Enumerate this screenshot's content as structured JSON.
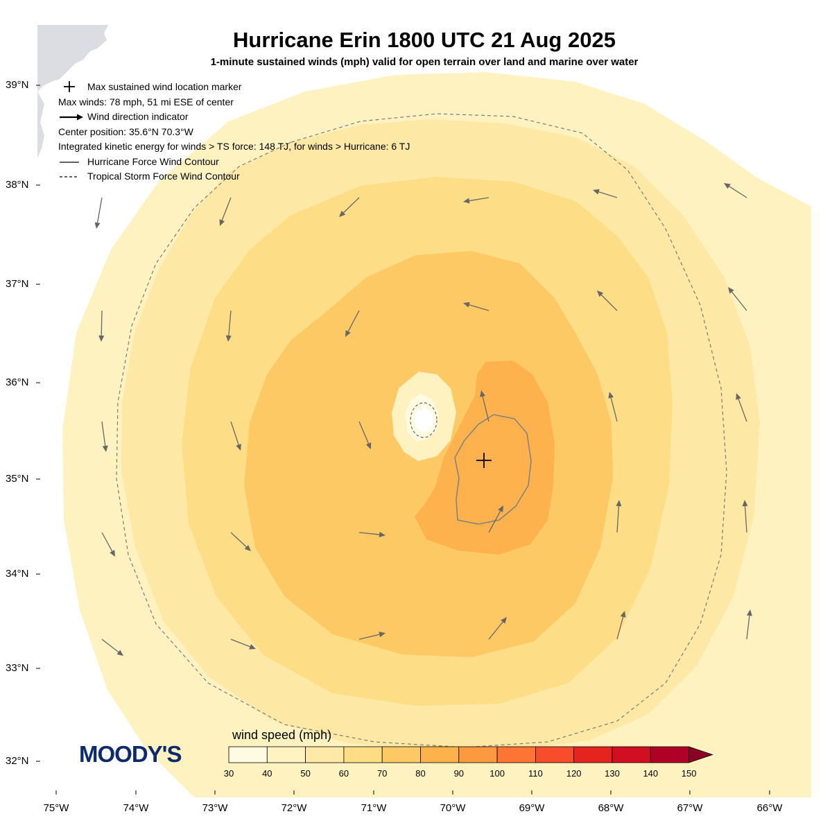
{
  "title": "Hurricane Erin 1800 UTC 21 Aug 2025",
  "subtitle": "1-minute sustained winds (mph) valid for open terrain over land and marine over water",
  "legend": {
    "marker": "Max sustained wind location marker",
    "max_winds": "Max winds: 78 mph, 51 mi ESE of center",
    "direction": "Wind direction indicator",
    "center": "Center position: 35.6°N 70.3°W",
    "ike": "Integrated kinetic energy for winds > TS force: 148 TJ, for winds > Hurricane: 6 TJ",
    "hurricane_contour": "Hurricane Force Wind Contour",
    "ts_contour": "Tropical Storm Force Wind Contour"
  },
  "axes": {
    "lat_labels": [
      "39°N",
      "38°N",
      "37°N",
      "36°N",
      "35°N",
      "34°N",
      "33°N",
      "32°N"
    ],
    "lon_labels": [
      "75°W",
      "74°W",
      "73°W",
      "72°W",
      "71°W",
      "70°W",
      "69°W",
      "68°W",
      "67°W",
      "66°W"
    ]
  },
  "colorbar": {
    "title": "wind speed (mph)",
    "ticks": [
      "30",
      "40",
      "50",
      "60",
      "70",
      "80",
      "90",
      "100",
      "110",
      "120",
      "130",
      "140",
      "150"
    ],
    "colors": [
      "#fffbe3",
      "#fff3c1",
      "#fee9a6",
      "#fedd85",
      "#fec964",
      "#feb24c",
      "#fd993f",
      "#fc7535",
      "#f74d2a",
      "#e6241f",
      "#d10e22",
      "#b10026",
      "#8a0024"
    ],
    "extend": "max"
  },
  "logo": "MOODY'S",
  "storm": {
    "center_lat": 35.6,
    "center_lon": -70.3,
    "max_wind_mph": 78,
    "max_wind_lat": 35.2,
    "max_wind_lon": -69.6
  },
  "colors": {
    "land": "#dcdde2",
    "band_30_40": "#fef3c0",
    "band_40_50": "#fde8a5",
    "band_50_60": "#fddd85",
    "band_60_70": "#fdc965",
    "band_70_80": "#fdb24d",
    "contour": "#808080",
    "arrow": "#666666"
  }
}
